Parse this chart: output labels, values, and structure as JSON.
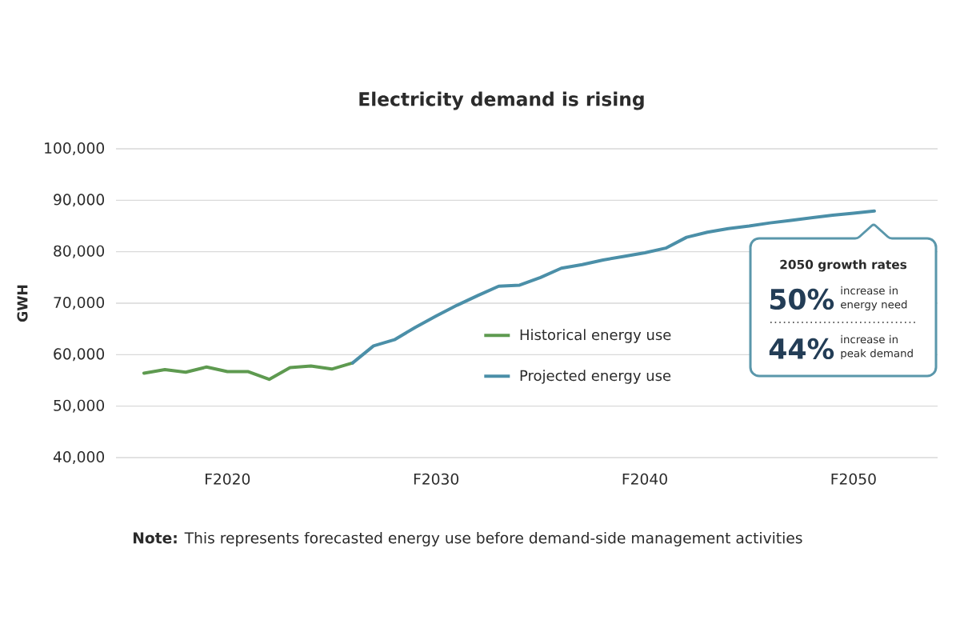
{
  "chart_data": {
    "type": "line",
    "title": "Electricity demand is rising",
    "ylabel": "GWH",
    "categories": [
      null,
      null,
      null,
      null,
      "F2020",
      null,
      null,
      null,
      null,
      null,
      null,
      null,
      null,
      null,
      "F2030",
      null,
      null,
      null,
      null,
      null,
      null,
      null,
      null,
      null,
      "F2040",
      null,
      null,
      null,
      null,
      null,
      null,
      null,
      null,
      null,
      "F2050",
      null
    ],
    "ylim": [
      40000,
      100000
    ],
    "yticks": [
      {
        "value": 40000,
        "label": "40,000"
      },
      {
        "value": 50000,
        "label": "50,000"
      },
      {
        "value": 60000,
        "label": "60,000"
      },
      {
        "value": 70000,
        "label": "70,000"
      },
      {
        "value": 80000,
        "label": "80,000"
      },
      {
        "value": 90000,
        "label": "90,000"
      },
      {
        "value": 100000,
        "label": "100,000"
      }
    ],
    "grid": "y",
    "legend": "bottom",
    "series": [
      {
        "name": "Historical energy use",
        "color": "#5e9a50",
        "values": [
          56400,
          57100,
          56600,
          57600,
          56700,
          56700,
          55200,
          57500,
          57800,
          57200,
          58400,
          null,
          null,
          null,
          null,
          null,
          null,
          null,
          null,
          null,
          null,
          null,
          null,
          null,
          null,
          null,
          null,
          null,
          null,
          null,
          null,
          null,
          null,
          null,
          null,
          null
        ]
      },
      {
        "name": "Projected energy use",
        "color": "#4b8fa8",
        "values": [
          null,
          null,
          null,
          null,
          null,
          null,
          null,
          null,
          null,
          null,
          58400,
          61700,
          62900,
          65300,
          67500,
          69600,
          71500,
          73300,
          73500,
          75000,
          76800,
          77500,
          78400,
          79100,
          79800,
          80700,
          82800,
          83800,
          84500,
          85000,
          85600,
          86100,
          86600,
          87100,
          87500,
          87900
        ]
      }
    ],
    "annotations": [
      "2050 growth rates",
      "50%",
      "increase in energy need",
      "44%",
      "increase in peak demand",
      "**Note:** This represents forecasted energy use before demand-side management activities"
    ]
  }
}
